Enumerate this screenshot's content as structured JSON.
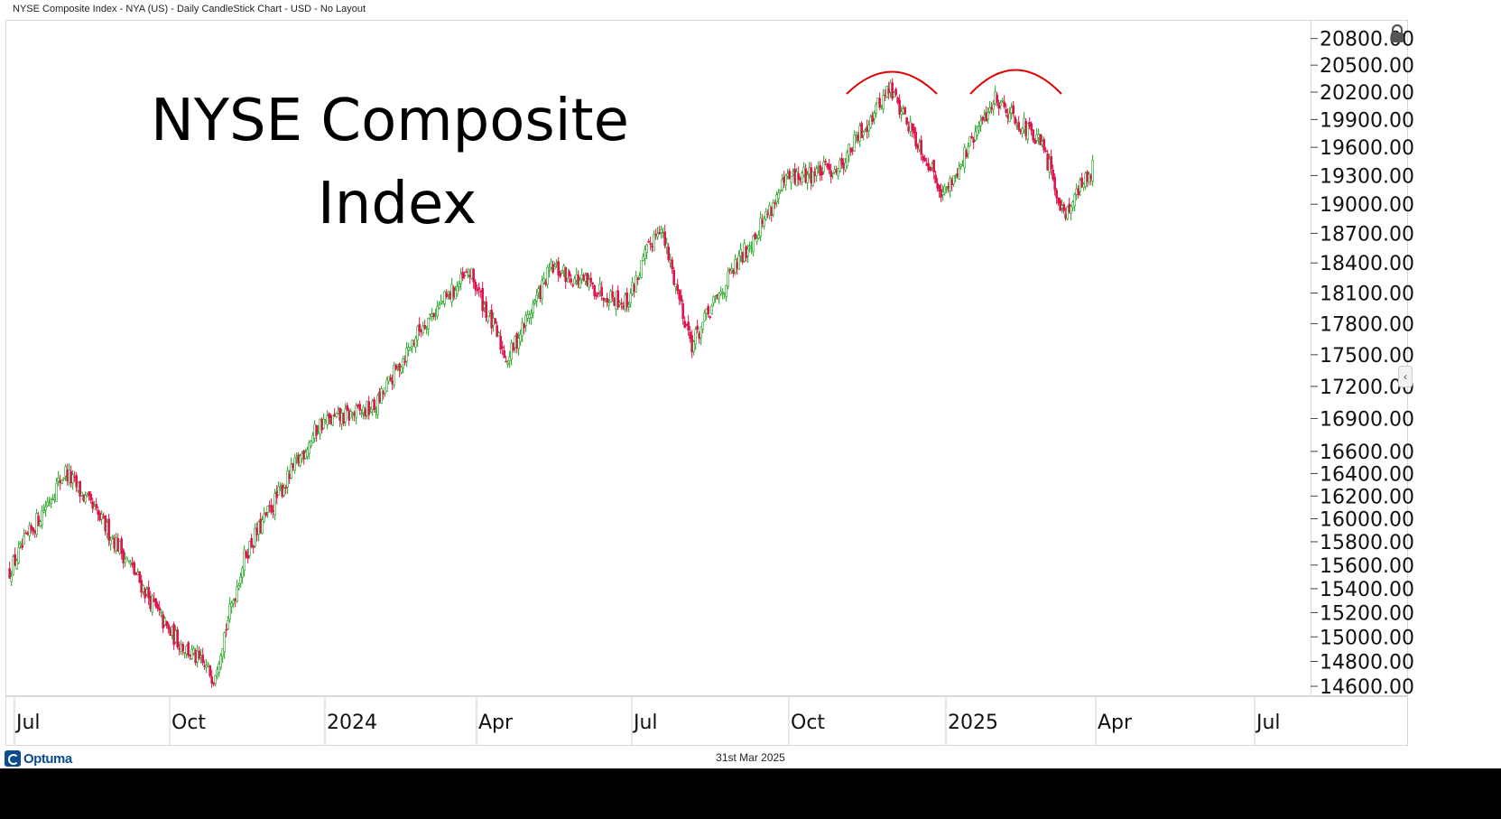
{
  "header": {
    "title": "NYSE Composite Index - NYA (US) - Daily CandleStick Chart - USD - No Layout"
  },
  "chart_data": {
    "type": "candlestick",
    "title": "NYSE Composite Index",
    "title_lines": [
      "NYSE Composite",
      "Index"
    ],
    "xlabel": "",
    "ylabel": "",
    "y_scale": "log",
    "ylim": [
      14550,
      20900
    ],
    "y_ticks": [
      "20800.00",
      "20500.00",
      "20200.00",
      "19900.00",
      "19600.00",
      "19300.00",
      "19000.00",
      "18700.00",
      "18400.00",
      "18100.00",
      "17800.00",
      "17500.00",
      "17200.00",
      "16900.00",
      "16600.00",
      "16400.00",
      "16200.00",
      "16000.00",
      "15800.00",
      "15600.00",
      "15400.00",
      "15200.00",
      "15000.00",
      "14800.00",
      "14600.00"
    ],
    "x_ticks": [
      "Jul",
      "Oct",
      "2024",
      "Apr",
      "Jul",
      "Oct",
      "2025",
      "Apr",
      "Jul"
    ],
    "colors": {
      "up": "#1aa31a",
      "down": "#e0134d",
      "annotation": "#e00000"
    },
    "annotations": [
      "double-top arc 1",
      "double-top arc 2"
    ],
    "series": [
      {
        "month_start_closes": [
          [
            "2023-06-15",
            15550
          ],
          [
            "2023-07-31",
            16420
          ],
          [
            "2023-08-31",
            15780
          ],
          [
            "2023-09-30",
            15050
          ],
          [
            "2023-10-27",
            14680
          ],
          [
            "2023-11-15",
            15700
          ],
          [
            "2023-12-29",
            16850
          ],
          [
            "2024-01-31",
            17000
          ],
          [
            "2024-02-29",
            17800
          ],
          [
            "2024-03-28",
            18300
          ],
          [
            "2024-04-19",
            17450
          ],
          [
            "2024-05-15",
            18350
          ],
          [
            "2024-06-28",
            18000
          ],
          [
            "2024-07-17",
            18800
          ],
          [
            "2024-08-05",
            17600
          ],
          [
            "2024-09-30",
            19250
          ],
          [
            "2024-10-31",
            19400
          ],
          [
            "2024-11-29",
            20250
          ],
          [
            "2024-12-31",
            19100
          ],
          [
            "2025-01-31",
            20150
          ],
          [
            "2025-02-28",
            19600
          ],
          [
            "2025-03-13",
            18900
          ],
          [
            "2025-03-31",
            19400
          ]
        ]
      }
    ],
    "footer_date": "31st Mar 2025",
    "logo_text": "Optuma"
  }
}
